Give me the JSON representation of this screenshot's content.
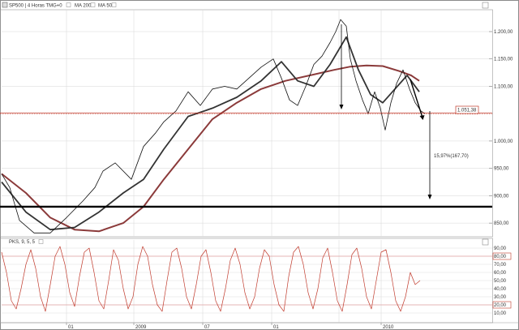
{
  "colors": {
    "price": "#111111",
    "ma200": "#8b3a3a",
    "ma50": "#333333",
    "support": "#000000",
    "resistance": "#c0392b",
    "stoch": "#c0392b",
    "stoch_levels": "#e0a0a0",
    "grid": "#d6d6d6",
    "value_box": "#c0392b"
  },
  "header": {
    "symbol": "SP500 | 4 Horas TMG+0",
    "ma200": "MA 200",
    "ma50": "MA 50"
  },
  "chart_data": [
    {
      "type": "line",
      "ylim": [
        825,
        1240
      ],
      "grid": true,
      "y_ticks": [
        "1.200,00",
        "1.150,00",
        "1.100,00",
        "1.000,00",
        "950,00",
        "900,00",
        "850,00"
      ],
      "x_ticks": [
        "01",
        "2009",
        "07",
        "01",
        "2010"
      ],
      "current_value": "1.051,38",
      "series": [
        {
          "name": "SP500",
          "color": "#111111",
          "x": [
            0,
            10,
            22,
            40,
            60,
            80,
            100,
            115,
            125,
            140,
            160,
            175,
            190,
            200,
            215,
            230,
            245,
            260,
            275,
            290,
            305,
            320,
            335,
            345,
            355,
            365,
            375,
            385,
            395,
            405,
            412,
            418,
            425,
            430,
            437,
            445,
            452,
            460,
            467,
            473,
            480,
            487,
            495,
            503,
            510,
            517,
            522
          ],
          "y": [
            940,
            915,
            855,
            832,
            832,
            860,
            890,
            915,
            945,
            960,
            930,
            990,
            1015,
            1035,
            1055,
            1090,
            1065,
            1095,
            1100,
            1095,
            1115,
            1135,
            1150,
            1115,
            1075,
            1065,
            1100,
            1140,
            1155,
            1180,
            1200,
            1222,
            1210,
            1150,
            1110,
            1075,
            1050,
            1090,
            1060,
            1020,
            1070,
            1105,
            1130,
            1095,
            1070,
            1055,
            1050
          ]
        },
        {
          "name": "MA 200",
          "color": "#8b3a3a",
          "x": [
            0,
            30,
            60,
            90,
            120,
            150,
            175,
            200,
            230,
            260,
            290,
            320,
            350,
            380,
            410,
            430,
            450,
            470,
            490,
            505,
            515
          ],
          "y": [
            940,
            905,
            860,
            838,
            835,
            850,
            880,
            930,
            985,
            1040,
            1070,
            1095,
            1110,
            1120,
            1130,
            1136,
            1138,
            1137,
            1128,
            1120,
            1110
          ]
        },
        {
          "name": "MA 50",
          "color": "#333333",
          "x": [
            0,
            30,
            60,
            90,
            120,
            150,
            175,
            200,
            230,
            260,
            290,
            320,
            345,
            365,
            385,
            405,
            425,
            440,
            455,
            470,
            485,
            500,
            515
          ],
          "y": [
            925,
            870,
            838,
            842,
            870,
            905,
            930,
            985,
            1045,
            1060,
            1080,
            1110,
            1145,
            1110,
            1100,
            1140,
            1190,
            1130,
            1085,
            1070,
            1095,
            1120,
            1090
          ]
        }
      ],
      "levels": [
        {
          "name": "resistance",
          "y": 1051.38
        },
        {
          "name": "support",
          "y": 880
        }
      ],
      "annotations": [
        {
          "text": "15,97%(167,70)",
          "x": 528,
          "y": 965
        }
      ]
    },
    {
      "type": "line",
      "title": "PKS, 9, 5, 5",
      "ylim": [
        0,
        100
      ],
      "y_ticks": [
        "90,00",
        "80,00",
        "70,00",
        "60,00",
        "50,00",
        "40,00",
        "30,00",
        "20,00",
        "10,00"
      ],
      "levels": [
        80,
        20
      ],
      "series": [
        {
          "name": "PKS",
          "color": "#c0392b",
          "x": [
            0,
            6,
            12,
            18,
            24,
            30,
            36,
            42,
            48,
            54,
            60,
            66,
            72,
            78,
            84,
            90,
            96,
            102,
            108,
            114,
            120,
            126,
            132,
            138,
            144,
            150,
            156,
            162,
            168,
            174,
            180,
            186,
            192,
            198,
            204,
            210,
            216,
            222,
            228,
            234,
            240,
            246,
            252,
            258,
            264,
            270,
            276,
            282,
            288,
            294,
            300,
            306,
            312,
            318,
            324,
            330,
            336,
            342,
            348,
            354,
            360,
            366,
            372,
            378,
            384,
            390,
            396,
            402,
            408,
            414,
            420,
            426,
            432,
            438,
            444,
            450,
            456,
            462,
            468,
            474,
            480,
            486,
            492,
            498,
            504,
            510,
            516
          ],
          "y": [
            85,
            60,
            25,
            15,
            40,
            70,
            88,
            65,
            30,
            12,
            45,
            80,
            92,
            70,
            35,
            18,
            55,
            85,
            90,
            60,
            25,
            15,
            50,
            88,
            75,
            40,
            15,
            30,
            70,
            92,
            80,
            45,
            20,
            12,
            50,
            85,
            90,
            65,
            30,
            15,
            45,
            80,
            88,
            60,
            25,
            12,
            40,
            75,
            90,
            70,
            35,
            15,
            30,
            65,
            88,
            80,
            45,
            20,
            12,
            55,
            85,
            92,
            70,
            35,
            15,
            40,
            78,
            90,
            60,
            25,
            12,
            45,
            82,
            90,
            65,
            30,
            15,
            50,
            85,
            88,
            60,
            25,
            12,
            30,
            60,
            45,
            50
          ]
        }
      ]
    }
  ]
}
